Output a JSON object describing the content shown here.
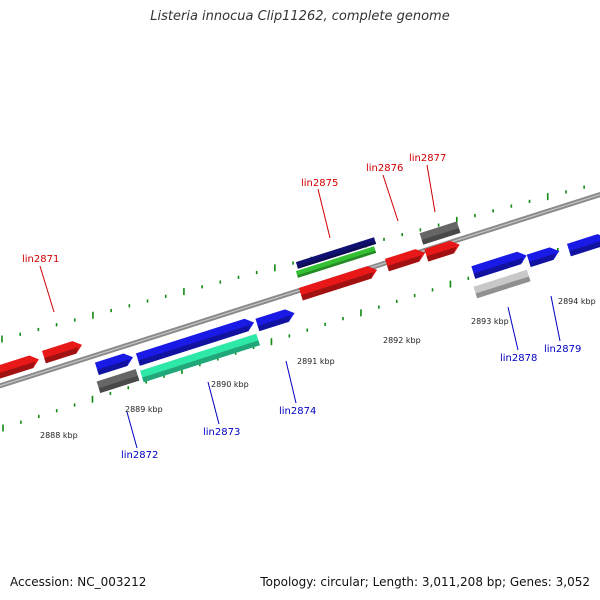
{
  "title": "Listeria innocua Clip11262, complete genome",
  "footer": {
    "accession": "Accession: NC_003212",
    "summary": "Topology: circular; Length: 3,011,208 bp; Genes: 3,052"
  },
  "colors": {
    "backbone": "#8a8a8a",
    "tick": "#118a11",
    "label_top": "#d00000",
    "label_bottom": "#0000c0",
    "scale_text": "#222222"
  },
  "scale_labels": [
    {
      "text": "2888 kbp"
    },
    {
      "text": "2889 kbp"
    },
    {
      "text": "2890 kbp"
    },
    {
      "text": "2891 kbp"
    },
    {
      "text": "2892 kbp"
    },
    {
      "text": "2893 kbp"
    },
    {
      "text": "2894 kbp"
    }
  ],
  "gene_labels": [
    {
      "text": "lin2871",
      "side": "top"
    },
    {
      "text": "lin2875",
      "side": "top"
    },
    {
      "text": "lin2876",
      "side": "top"
    },
    {
      "text": "lin2877",
      "side": "top"
    },
    {
      "text": "lin2872",
      "side": "bottom"
    },
    {
      "text": "lin2873",
      "side": "bottom"
    },
    {
      "text": "lin2874",
      "side": "bottom"
    },
    {
      "text": "lin2878",
      "side": "bottom"
    },
    {
      "text": "lin2879",
      "side": "bottom"
    }
  ],
  "features": [
    {
      "name": "gene-red-left",
      "color": "#e81818",
      "strand": "+"
    },
    {
      "name": "gene-lin2871",
      "color": "#e81818",
      "strand": "+"
    },
    {
      "name": "gene-lin2872-blue",
      "color": "#1a1ae6",
      "strand": "+"
    },
    {
      "name": "gene-lin2873",
      "color": "#1a1ae6",
      "strand": "+"
    },
    {
      "name": "gene-lin2874",
      "color": "#1a1ae6",
      "strand": "+"
    },
    {
      "name": "gene-lin2875",
      "color": "#e81818",
      "strand": "+"
    },
    {
      "name": "gene-lin2876",
      "color": "#e81818",
      "strand": "+"
    },
    {
      "name": "gene-lin2877",
      "color": "#e81818",
      "strand": "+"
    },
    {
      "name": "gene-lin2878",
      "color": "#1a1ae6",
      "strand": "+"
    },
    {
      "name": "gene-lin2879",
      "color": "#1a1ae6",
      "strand": "+"
    },
    {
      "name": "gene-right-edge",
      "color": "#1a1ae6",
      "strand": "+"
    },
    {
      "name": "rna-lin2872",
      "color": "#666666",
      "strand": "none"
    },
    {
      "name": "rna-lin2873",
      "color": "#2ee8a8",
      "strand": "none"
    },
    {
      "name": "track-lin2875-navy",
      "color": "#101070",
      "strand": "none"
    },
    {
      "name": "track-lin2875-green",
      "color": "#33c033",
      "strand": "none"
    },
    {
      "name": "rna-lin2877",
      "color": "#666666",
      "strand": "none"
    },
    {
      "name": "rna-lin2878",
      "color": "#c8c8c8",
      "strand": "none"
    }
  ]
}
